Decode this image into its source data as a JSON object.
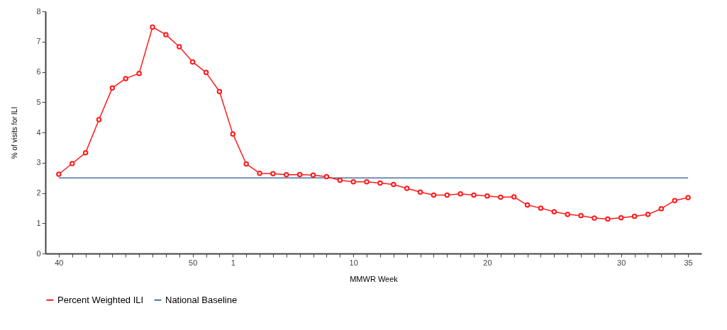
{
  "chart_data": {
    "type": "line",
    "xlabel": "MMWR Week",
    "ylabel": "% of visits for ILI",
    "categories": [
      "40",
      null,
      null,
      null,
      null,
      null,
      null,
      null,
      null,
      null,
      "50",
      null,
      null,
      "1",
      null,
      null,
      null,
      null,
      null,
      null,
      null,
      null,
      "10",
      null,
      null,
      null,
      null,
      null,
      null,
      null,
      null,
      null,
      "20",
      null,
      null,
      null,
      null,
      null,
      null,
      null,
      null,
      null,
      "30",
      null,
      null,
      null,
      null,
      "35"
    ],
    "series": [
      {
        "name": "Percent Weighted ILI",
        "color": "#ff1a1a",
        "marker": "circle",
        "values": [
          2.62,
          2.97,
          3.33,
          4.42,
          5.47,
          5.78,
          5.95,
          7.48,
          7.23,
          6.83,
          6.33,
          5.98,
          5.35,
          3.95,
          2.96,
          2.65,
          2.64,
          2.6,
          2.61,
          2.59,
          2.54,
          2.42,
          2.37,
          2.37,
          2.33,
          2.28,
          2.15,
          2.03,
          1.93,
          1.93,
          1.97,
          1.93,
          1.9,
          1.86,
          1.87,
          1.6,
          1.5,
          1.38,
          1.29,
          1.25,
          1.17,
          1.14,
          1.18,
          1.23,
          1.29,
          1.48,
          1.75,
          1.85
        ]
      },
      {
        "name": "National Baseline",
        "color": "#4a72a0",
        "marker": "none",
        "values": [
          2.5,
          2.5,
          2.5,
          2.5,
          2.5,
          2.5,
          2.5,
          2.5,
          2.5,
          2.5,
          2.5,
          2.5,
          2.5,
          2.5,
          2.5,
          2.5,
          2.5,
          2.5,
          2.5,
          2.5,
          2.5,
          2.5,
          2.5,
          2.5,
          2.5,
          2.5,
          2.5,
          2.5,
          2.5,
          2.5,
          2.5,
          2.5,
          2.5,
          2.5,
          2.5,
          2.5,
          2.5,
          2.5,
          2.5,
          2.5,
          2.5,
          2.5,
          2.5,
          2.5,
          2.5,
          2.5,
          2.5,
          2.5
        ]
      }
    ],
    "ylim": [
      0,
      8
    ],
    "yticks": [
      0,
      1,
      2,
      3,
      4,
      5,
      6,
      7,
      8
    ],
    "grid": false,
    "legend": "bottom",
    "line_style": "solid"
  }
}
